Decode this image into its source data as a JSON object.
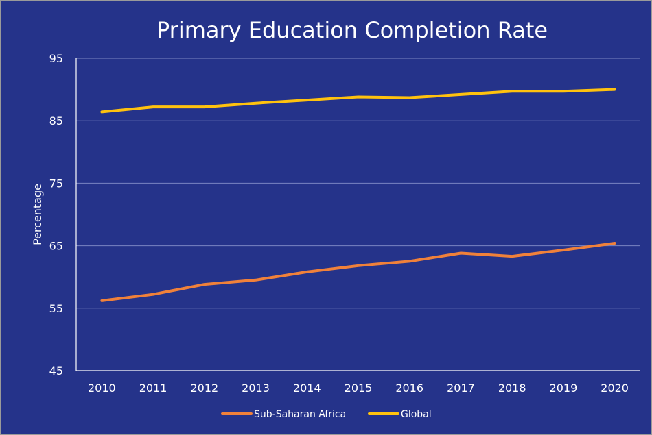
{
  "chart_data": {
    "type": "line",
    "title": "Primary Education Completion Rate",
    "xlabel": "",
    "ylabel": "Percentage",
    "categories": [
      "2010",
      "2011",
      "2012",
      "2013",
      "2014",
      "2015",
      "2016",
      "2017",
      "2018",
      "2019",
      "2020"
    ],
    "ylim": [
      45,
      95
    ],
    "yticks": [
      45,
      55,
      65,
      75,
      85,
      95
    ],
    "ytick_labels": [
      "45",
      "55",
      "65",
      "75",
      "85",
      "95"
    ],
    "grid": true,
    "legend_position": "bottom",
    "series": [
      {
        "name": "Sub-Saharan Africa",
        "color": "#f0813a",
        "values": [
          56.2,
          57.2,
          58.8,
          59.5,
          60.8,
          61.8,
          62.5,
          63.8,
          63.3,
          64.3,
          65.4
        ]
      },
      {
        "name": "Global",
        "color": "#ffc20e",
        "values": [
          86.4,
          87.2,
          87.2,
          87.8,
          88.3,
          88.8,
          88.7,
          89.2,
          89.7,
          89.7,
          90.0
        ]
      }
    ]
  },
  "colors": {
    "background": "#25338a",
    "gridline": "#7a84c2",
    "axis": "#ffffff",
    "text": "#ffffff"
  }
}
